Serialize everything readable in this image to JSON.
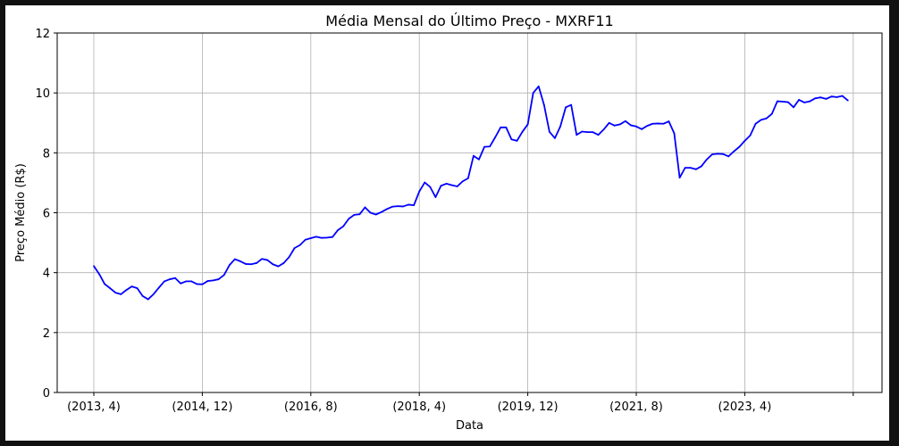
{
  "chart_data": {
    "type": "line",
    "title": "Média Mensal do Último Preço - MXRF11",
    "xlabel": "Data",
    "ylabel": "Preço Médio (R$)",
    "ylim": [
      0,
      12
    ],
    "y_ticks": [
      0,
      2,
      4,
      6,
      8,
      10,
      12
    ],
    "x_tick_labels": [
      "(2013, 4)",
      "(2014, 12)",
      "(2016, 8)",
      "(2018, 4)",
      "(2019, 12)",
      "(2021, 8)",
      "(2023, 4)",
      ""
    ],
    "x_tick_every": 20,
    "grid": true,
    "line_color": "#0000ff",
    "series": [
      {
        "values": [
          4.22,
          3.95,
          3.62,
          3.48,
          3.33,
          3.28,
          3.42,
          3.54,
          3.48,
          3.22,
          3.11,
          3.28,
          3.5,
          3.71,
          3.78,
          3.82,
          3.64,
          3.71,
          3.71,
          3.62,
          3.61,
          3.72,
          3.74,
          3.78,
          3.92,
          4.25,
          4.45,
          4.38,
          4.29,
          4.28,
          4.32,
          4.46,
          4.42,
          4.28,
          4.21,
          4.32,
          4.52,
          4.82,
          4.92,
          5.1,
          5.15,
          5.2,
          5.16,
          5.17,
          5.19,
          5.42,
          5.55,
          5.8,
          5.93,
          5.95,
          6.18,
          6.0,
          5.94,
          6.02,
          6.12,
          6.2,
          6.22,
          6.21,
          6.27,
          6.25,
          6.71,
          7.01,
          6.86,
          6.52,
          6.9,
          6.97,
          6.92,
          6.88,
          7.05,
          7.15,
          7.9,
          7.78,
          8.2,
          8.21,
          8.52,
          8.85,
          8.85,
          8.45,
          8.4,
          8.7,
          8.95,
          10.0,
          10.22,
          9.6,
          8.7,
          8.49,
          8.88,
          9.52,
          9.6,
          8.6,
          8.71,
          8.69,
          8.69,
          8.6,
          8.78,
          9.0,
          8.91,
          8.95,
          9.06,
          8.92,
          8.88,
          8.79,
          8.9,
          8.97,
          8.98,
          8.97,
          9.05,
          8.65,
          7.17,
          7.5,
          7.5,
          7.45,
          7.55,
          7.78,
          7.95,
          7.97,
          7.96,
          7.88,
          8.05,
          8.2,
          8.4,
          8.58,
          8.97,
          9.1,
          9.15,
          9.3,
          9.72,
          9.71,
          9.69,
          9.52,
          9.77,
          9.68,
          9.72,
          9.82,
          9.85,
          9.8,
          9.88,
          9.86,
          9.9,
          9.75
        ]
      }
    ]
  }
}
